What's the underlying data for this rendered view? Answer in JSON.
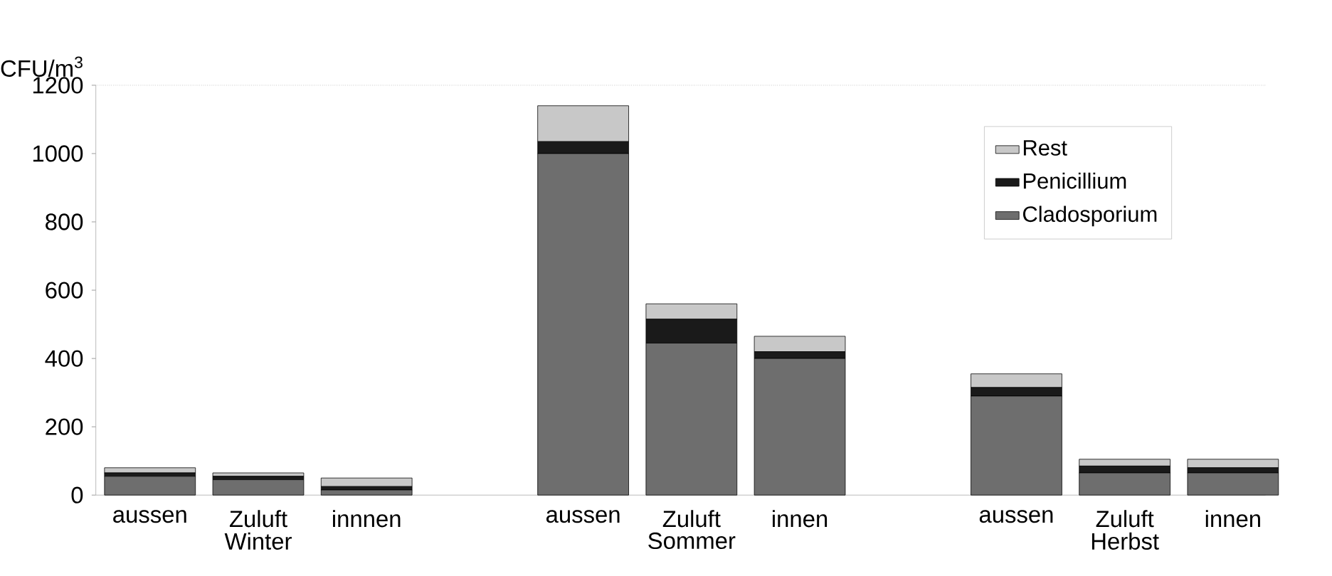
{
  "chart_data": {
    "type": "bar",
    "stacked": true,
    "ylabel": "CFU/m$^{3}$",
    "categories": [
      "aussen",
      "Zuluft",
      "innnen",
      null,
      "aussen",
      "Zuluft",
      "innen",
      null,
      "aussen",
      "Zuluft",
      "innen"
    ],
    "series": [
      {
        "name": "Cladosporium",
        "color": "#6e6e6e",
        "values": [
          55,
          45,
          15,
          null,
          1000,
          445,
          400,
          null,
          290,
          65,
          65
        ]
      },
      {
        "name": "Penicillium",
        "color": "#1a1a1a",
        "values": [
          10,
          10,
          10,
          null,
          35,
          70,
          20,
          null,
          25,
          20,
          15
        ]
      },
      {
        "name": "Rest",
        "color": "#c8c8c8",
        "values": [
          15,
          10,
          25,
          null,
          105,
          45,
          45,
          null,
          40,
          20,
          25
        ]
      }
    ],
    "annotations": [
      "Winter",
      "Sommer",
      "Herbst"
    ],
    "ylim": [
      0,
      1200
    ],
    "yticks": [
      0,
      200,
      400,
      600,
      800,
      1000,
      1200
    ],
    "legend": "top right",
    "grid": false
  }
}
